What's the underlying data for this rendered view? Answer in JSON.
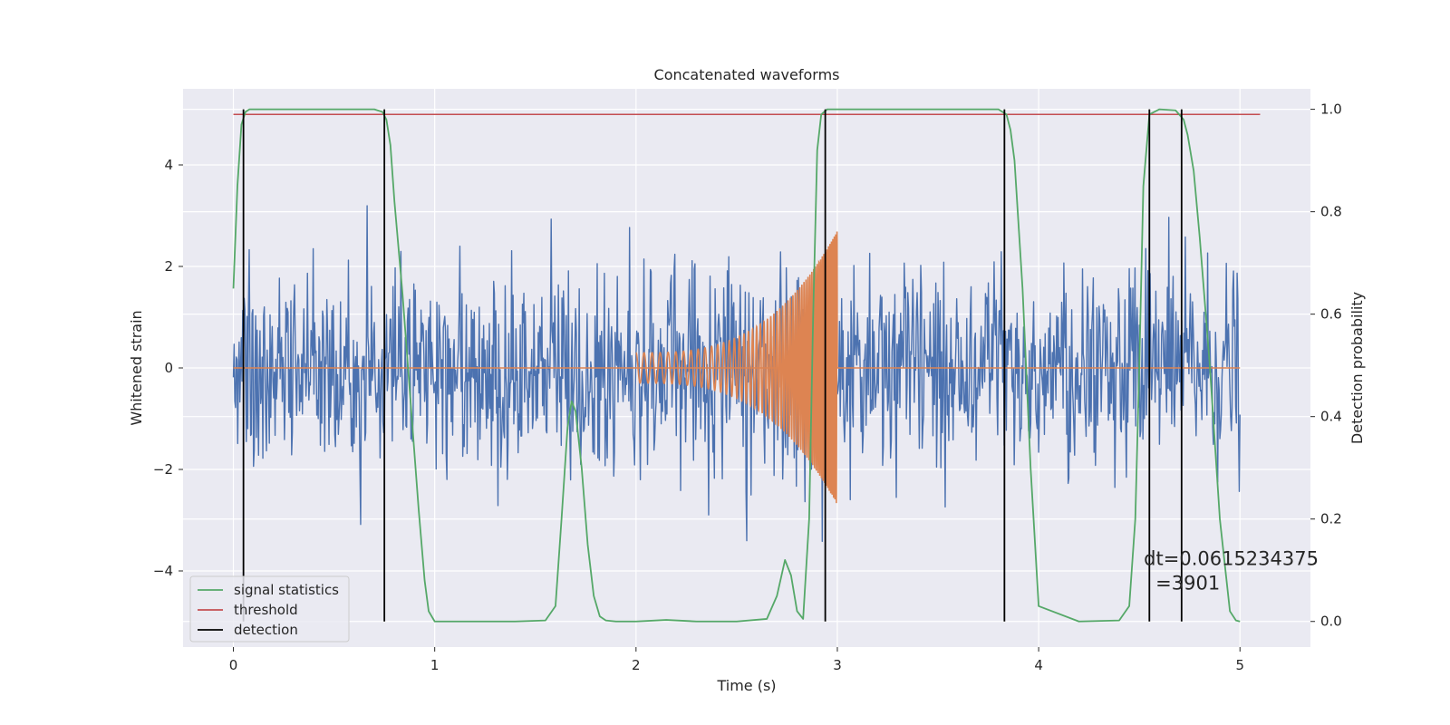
{
  "chart_data": {
    "type": "line",
    "title": "Concatenated waveforms",
    "xlabel": "Time (s)",
    "ylabel_left": "Whitened strain",
    "ylabel_right": "Detection probability",
    "xlim": [
      -0.25,
      5.35
    ],
    "ylim_left": [
      -5.5,
      5.5
    ],
    "ylim_right": [
      -0.05,
      1.04
    ],
    "xticks": [
      0,
      1,
      2,
      3,
      4,
      5
    ],
    "yticks_left": [
      -4,
      -2,
      0,
      2,
      4
    ],
    "yticks_right": [
      0.0,
      0.2,
      0.4,
      0.6,
      0.8,
      1.0
    ],
    "xtick_labels": [
      "0",
      "1",
      "2",
      "3",
      "4",
      "5"
    ],
    "ytick_labels_left": [
      "−4",
      "−2",
      "0",
      "2",
      "4"
    ],
    "ytick_labels_right": [
      "0.0",
      "0.2",
      "0.4",
      "0.6",
      "0.8",
      "1.0"
    ],
    "grid": true,
    "legend_position": "lower-left",
    "colors": {
      "strain_noise": "#4c72b0",
      "injected_waveform": "#dd8452",
      "signal_statistics": "#55a868",
      "threshold": "#c44e52",
      "detection": "#000000",
      "background": "#eaeaf2"
    },
    "noise": {
      "x_range": [
        0.0,
        5.0
      ],
      "std": 1.0,
      "max_abs": 5.0,
      "sample_count": 1400
    },
    "injection": {
      "x_start": 2.0,
      "x_end": 3.0,
      "baseline_x_range": [
        0.0,
        5.0
      ],
      "amplitude_start": 0.3,
      "amplitude_end": 2.7,
      "freq_start_hz": 25,
      "freq_end_hz": 150
    },
    "threshold_value": 0.99,
    "threshold_x_range": [
      0.0,
      5.1
    ],
    "detections": [
      0.05,
      0.75,
      2.94,
      3.83,
      4.55,
      4.71
    ],
    "signal_statistics": {
      "x": [
        0.0,
        0.02,
        0.04,
        0.06,
        0.08,
        0.1,
        0.2,
        0.4,
        0.6,
        0.7,
        0.74,
        0.76,
        0.78,
        0.8,
        0.84,
        0.88,
        0.92,
        0.95,
        0.97,
        1.0,
        1.2,
        1.4,
        1.55,
        1.6,
        1.63,
        1.66,
        1.68,
        1.7,
        1.73,
        1.76,
        1.79,
        1.82,
        1.85,
        1.9,
        2.0,
        2.15,
        2.3,
        2.5,
        2.65,
        2.7,
        2.74,
        2.77,
        2.8,
        2.83,
        2.86,
        2.88,
        2.9,
        2.92,
        2.95,
        3.0,
        3.2,
        3.5,
        3.8,
        3.84,
        3.86,
        3.88,
        3.92,
        3.96,
        4.0,
        4.2,
        4.4,
        4.45,
        4.48,
        4.5,
        4.52,
        4.55,
        4.6,
        4.68,
        4.72,
        4.74,
        4.77,
        4.8,
        4.85,
        4.9,
        4.95,
        4.98,
        5.0
      ],
      "y": [
        0.65,
        0.85,
        0.97,
        0.995,
        1.0,
        1.0,
        1.0,
        1.0,
        1.0,
        1.0,
        0.995,
        0.98,
        0.93,
        0.82,
        0.64,
        0.43,
        0.22,
        0.08,
        0.02,
        0.0,
        0.0,
        0.0,
        0.002,
        0.03,
        0.2,
        0.38,
        0.43,
        0.41,
        0.3,
        0.15,
        0.05,
        0.01,
        0.002,
        0.0,
        0.0,
        0.003,
        0.0,
        0.0,
        0.005,
        0.05,
        0.12,
        0.09,
        0.02,
        0.005,
        0.2,
        0.6,
        0.92,
        0.99,
        1.0,
        1.0,
        1.0,
        1.0,
        1.0,
        0.99,
        0.96,
        0.9,
        0.65,
        0.3,
        0.03,
        0.0,
        0.002,
        0.03,
        0.2,
        0.5,
        0.85,
        0.99,
        1.0,
        0.998,
        0.98,
        0.95,
        0.88,
        0.75,
        0.5,
        0.2,
        0.02,
        0.002,
        0.0
      ]
    },
    "annotation": {
      "lines": [
        "dt=0.0615234375",
        "=3901"
      ],
      "x": 4.5,
      "y_right": 0.11
    },
    "legend": [
      {
        "label": "signal statistics",
        "color_key": "signal_statistics"
      },
      {
        "label": "threshold",
        "color_key": "threshold"
      },
      {
        "label": "detection",
        "color_key": "detection"
      }
    ]
  }
}
